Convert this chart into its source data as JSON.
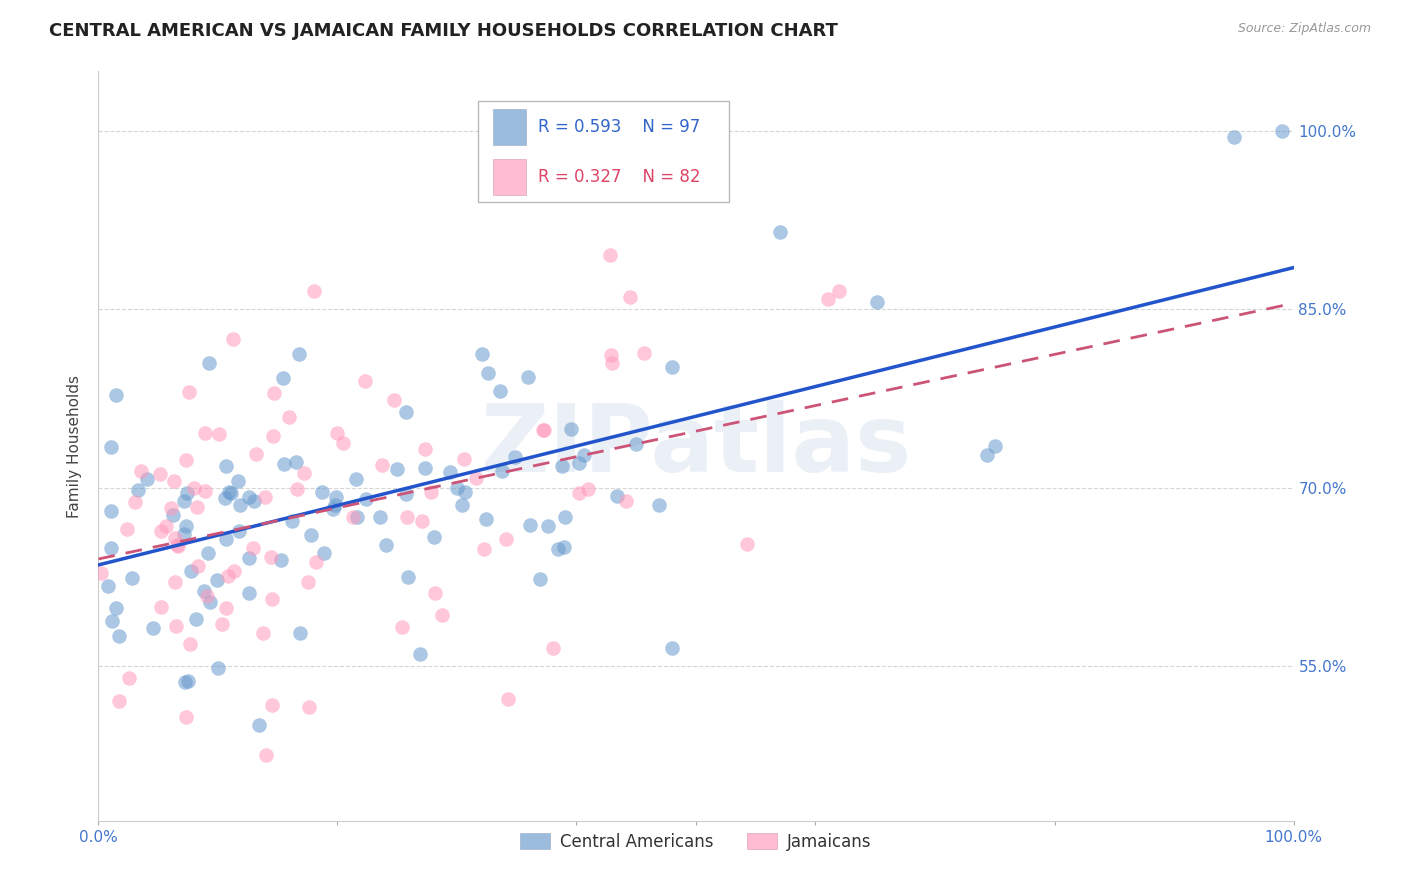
{
  "title": "CENTRAL AMERICAN VS JAMAICAN FAMILY HOUSEHOLDS CORRELATION CHART",
  "source": "Source: ZipAtlas.com",
  "ylabel": "Family Households",
  "ytick_labels": [
    "55.0%",
    "70.0%",
    "85.0%",
    "100.0%"
  ],
  "ytick_values": [
    0.55,
    0.7,
    0.85,
    1.0
  ],
  "xlim": [
    0.0,
    1.0
  ],
  "ylim": [
    0.42,
    1.05
  ],
  "blue_color": "#6699CC",
  "pink_color": "#FF99BB",
  "line_blue": "#2255CC",
  "line_pink": "#CC5577",
  "watermark": "ZIPatlas",
  "title_fontsize": 13,
  "label_fontsize": 11,
  "tick_fontsize": 11,
  "scatter_alpha": 0.55,
  "scatter_size": 110,
  "blue_line_x0": 0.0,
  "blue_line_y0": 0.635,
  "blue_line_x1": 1.0,
  "blue_line_y1": 0.885,
  "pink_line_x0": 0.0,
  "pink_line_y0": 0.64,
  "pink_line_x1": 1.0,
  "pink_line_y1": 0.855
}
